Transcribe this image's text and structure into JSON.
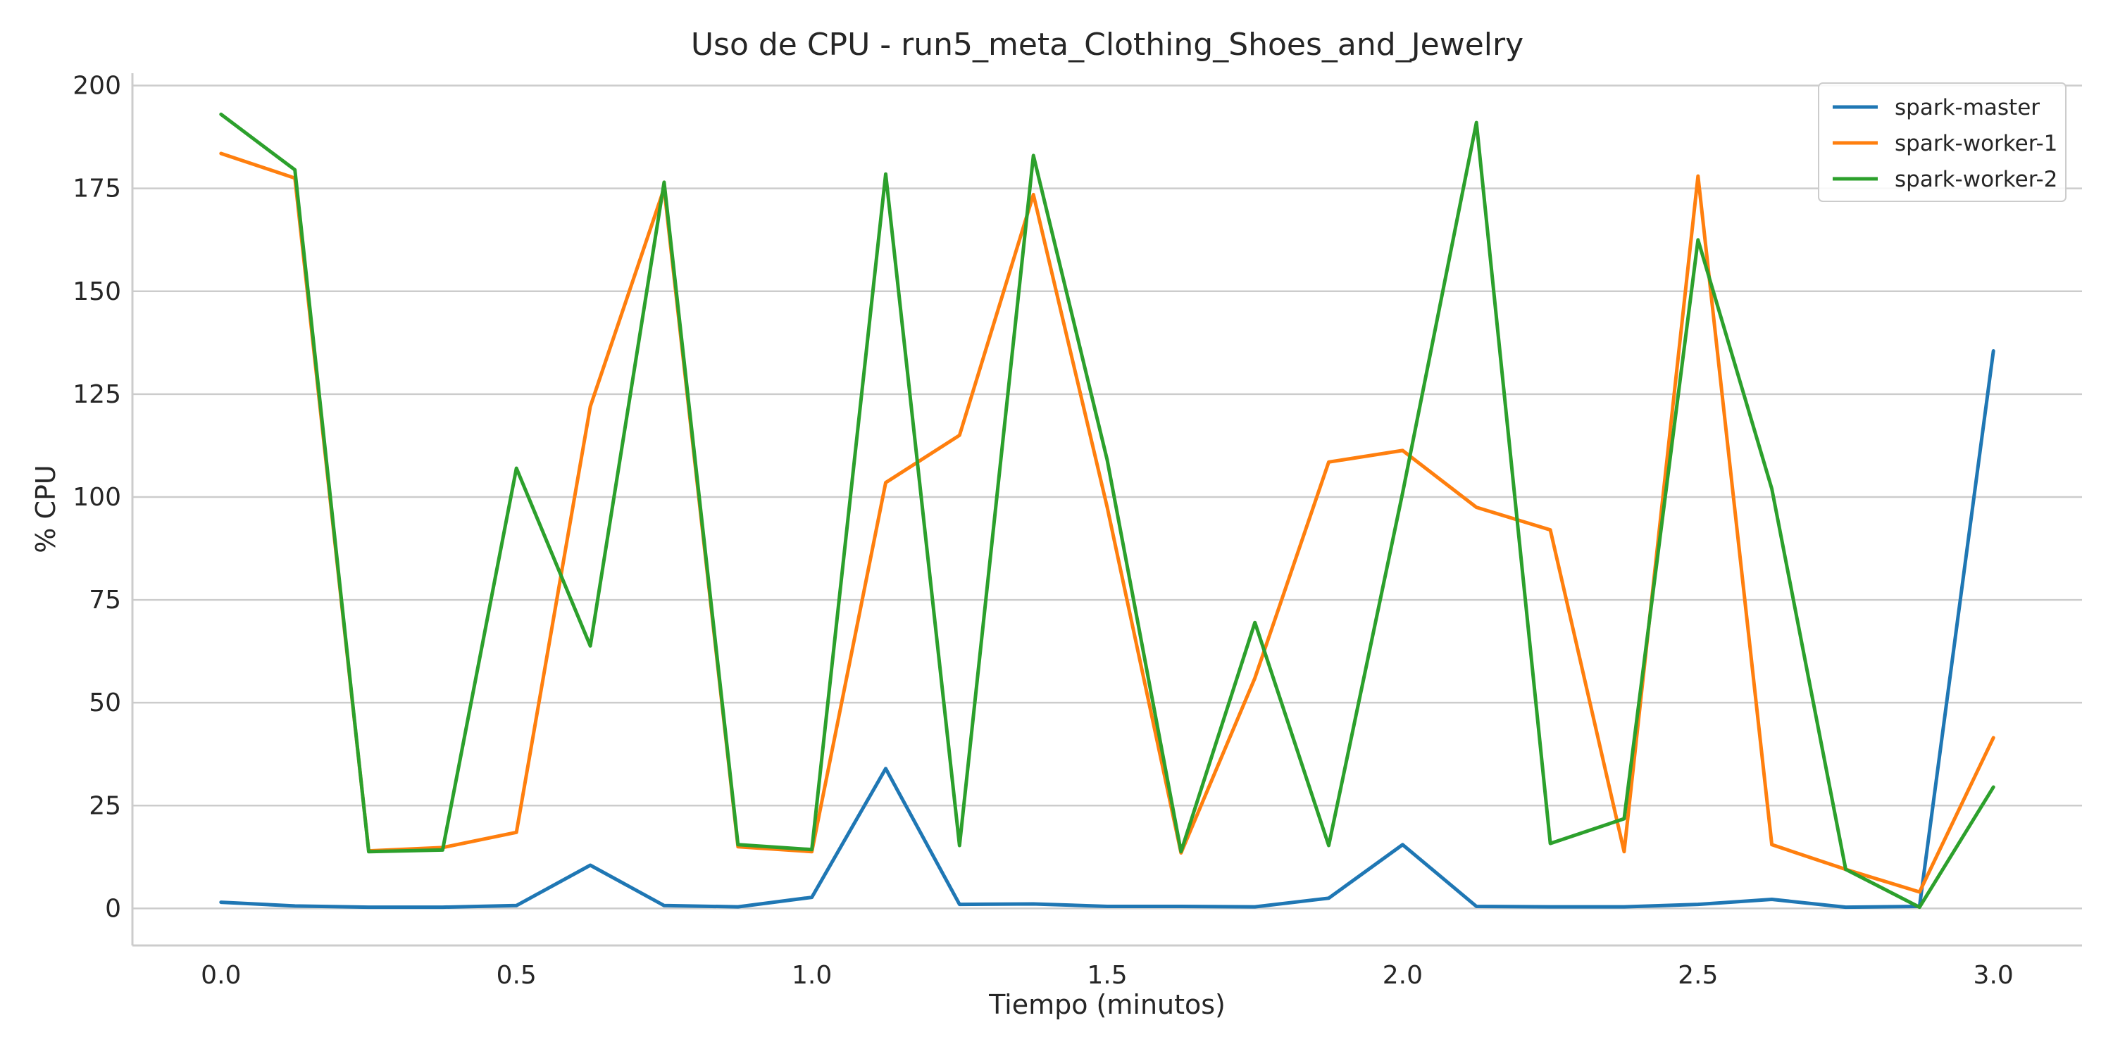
{
  "chart_data": {
    "type": "line",
    "title": "Uso de CPU - run5_meta_Clothing_Shoes_and_Jewelry",
    "xlabel": "Tiempo (minutos)",
    "ylabel": "% CPU",
    "xlim": [
      -0.15,
      3.15
    ],
    "ylim": [
      -9,
      203
    ],
    "xticks": [
      0.0,
      0.5,
      1.0,
      1.5,
      2.0,
      2.5,
      3.0
    ],
    "xtick_labels": [
      "0.0",
      "0.5",
      "1.0",
      "1.5",
      "2.0",
      "2.5",
      "3.0"
    ],
    "yticks": [
      0,
      25,
      50,
      75,
      100,
      125,
      150,
      175,
      200
    ],
    "ytick_labels": [
      "0",
      "25",
      "50",
      "75",
      "100",
      "125",
      "150",
      "175",
      "200"
    ],
    "grid": "horizontal",
    "legend_position": "top-right",
    "x": [
      0,
      0.125,
      0.25,
      0.375,
      0.5,
      0.625,
      0.75,
      0.875,
      1.0,
      1.125,
      1.25,
      1.375,
      1.5,
      1.625,
      1.75,
      1.875,
      2.0,
      2.125,
      2.25,
      2.375,
      2.5,
      2.625,
      2.75,
      2.875,
      3.0
    ],
    "series": [
      {
        "name": "spark-master",
        "color": "#1f77b4",
        "values": [
          1.5,
          0.6,
          0.3,
          0.3,
          0.7,
          10.5,
          0.7,
          0.4,
          2.7,
          34,
          1.0,
          1.1,
          0.5,
          0.5,
          0.4,
          2.5,
          15.5,
          0.5,
          0.4,
          0.4,
          1.0,
          2.2,
          0.3,
          0.5,
          135.5
        ]
      },
      {
        "name": "spark-worker-1",
        "color": "#ff7f0e",
        "values": [
          183.5,
          177.5,
          14,
          14.8,
          18.5,
          122,
          175,
          15,
          13.8,
          103.5,
          115,
          173.5,
          97.5,
          13.5,
          56,
          108.5,
          111.3,
          97.5,
          92,
          13.8,
          178,
          15.5,
          9.5,
          4,
          41.5
        ]
      },
      {
        "name": "spark-worker-2",
        "color": "#2ca02c",
        "values": [
          193,
          179.5,
          13.8,
          14.2,
          107,
          63.8,
          176.5,
          15.5,
          14.3,
          178.5,
          15.3,
          183,
          109,
          13.8,
          69.5,
          15.3,
          101,
          191,
          15.8,
          21.8,
          162.5,
          102,
          9.5,
          0.3,
          29.5
        ]
      }
    ]
  }
}
